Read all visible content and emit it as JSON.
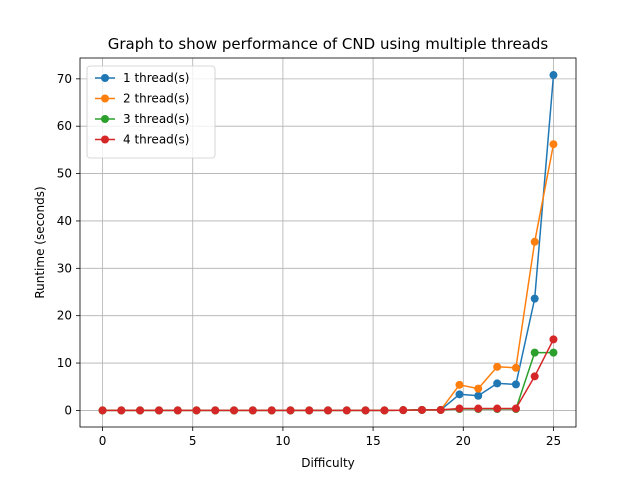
{
  "chart_data": {
    "type": "line",
    "title": "Graph to show performance of CND using multiple threads",
    "xlabel": "Difficulty",
    "ylabel": "Runtime (seconds)",
    "xlim": [
      -1.25,
      26.25
    ],
    "ylim": [
      -3.5,
      74.4
    ],
    "xticks": [
      0,
      5,
      10,
      15,
      20,
      25
    ],
    "yticks": [
      0,
      10,
      20,
      30,
      40,
      50,
      60,
      70
    ],
    "grid": true,
    "legend": "upper-left",
    "x": [
      0,
      1.04,
      2.08,
      3.13,
      4.17,
      5.21,
      6.25,
      7.29,
      8.33,
      9.38,
      10.42,
      11.46,
      12.5,
      13.54,
      14.58,
      15.63,
      16.67,
      17.71,
      18.75,
      19.79,
      20.83,
      21.88,
      22.92,
      23.96,
      25
    ],
    "series": [
      {
        "name": "1 thread(s)",
        "color": "#1f77b4",
        "values": [
          0,
          0,
          0,
          0,
          0,
          0,
          0,
          0,
          0,
          0,
          0,
          0,
          0,
          0,
          0,
          0,
          0.05,
          0.1,
          0.1,
          3.4,
          3.1,
          5.7,
          5.5,
          23.6,
          70.8
        ]
      },
      {
        "name": "2 thread(s)",
        "color": "#ff7f0e",
        "values": [
          0,
          0,
          0,
          0,
          0,
          0,
          0,
          0,
          0,
          0,
          0,
          0,
          0,
          0,
          0,
          0,
          0.05,
          0.1,
          0.1,
          5.4,
          4.6,
          9.2,
          9.0,
          35.6,
          56.2
        ]
      },
      {
        "name": "3 thread(s)",
        "color": "#2ca02c",
        "values": [
          0,
          0,
          0,
          0,
          0,
          0,
          0,
          0,
          0,
          0,
          0,
          0,
          0,
          0,
          0,
          0,
          0.05,
          0.1,
          0.1,
          0.3,
          0.3,
          0.3,
          0.3,
          12.2,
          12.2
        ]
      },
      {
        "name": "4 thread(s)",
        "color": "#d62728",
        "values": [
          0,
          0,
          0,
          0,
          0,
          0,
          0,
          0,
          0,
          0,
          0,
          0,
          0,
          0,
          0,
          0,
          0.05,
          0.1,
          0.1,
          0.4,
          0.4,
          0.4,
          0.4,
          7.2,
          15.0
        ]
      }
    ]
  }
}
